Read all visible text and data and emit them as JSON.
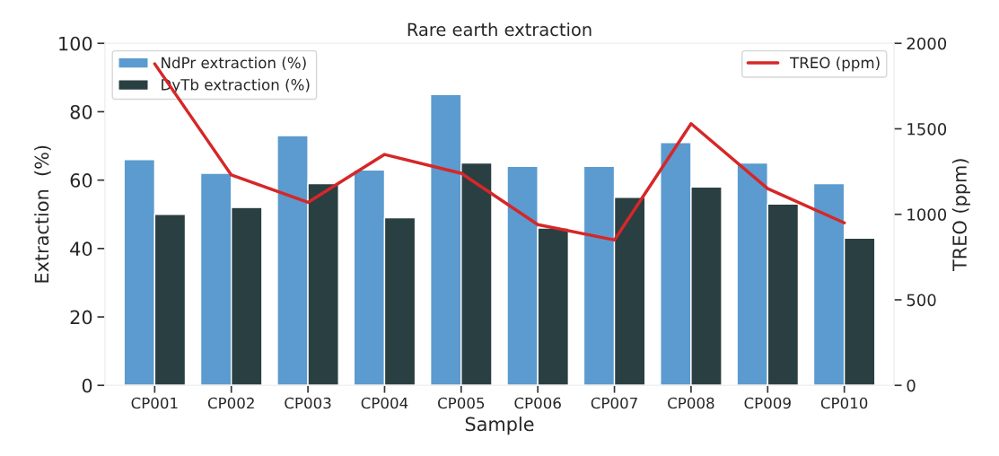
{
  "chart_data": {
    "type": "bar",
    "title": "Rare earth extraction",
    "xlabel": "Sample",
    "ylabel": "Extraction  (%)",
    "y2label": "TREO (ppm)",
    "categories": [
      "CP001",
      "CP002",
      "CP003",
      "CP004",
      "CP005",
      "CP006",
      "CP007",
      "CP008",
      "CP009",
      "CP010"
    ],
    "series": [
      {
        "name": "NdPr extraction (%)",
        "color": "#5b9bcf",
        "values": [
          66,
          62,
          73,
          63,
          85,
          64,
          64,
          71,
          65,
          59
        ]
      },
      {
        "name": "DyTb extraction (%)",
        "color": "#2a3f42",
        "values": [
          50,
          52,
          59,
          49,
          65,
          46,
          55,
          58,
          53,
          43
        ]
      },
      {
        "name": "TREO (ppm)",
        "type": "line",
        "axis": "y2",
        "color": "#d62728",
        "values": [
          1880,
          1230,
          1070,
          1350,
          1240,
          940,
          850,
          1530,
          1150,
          950
        ]
      }
    ],
    "ylim": [
      0,
      100
    ],
    "yticks": [
      0,
      20,
      40,
      60,
      80,
      100
    ],
    "y2lim": [
      0,
      2000
    ],
    "y2ticks": [
      0,
      500,
      1000,
      1500,
      2000
    ],
    "grid": false,
    "legend": "top left"
  }
}
